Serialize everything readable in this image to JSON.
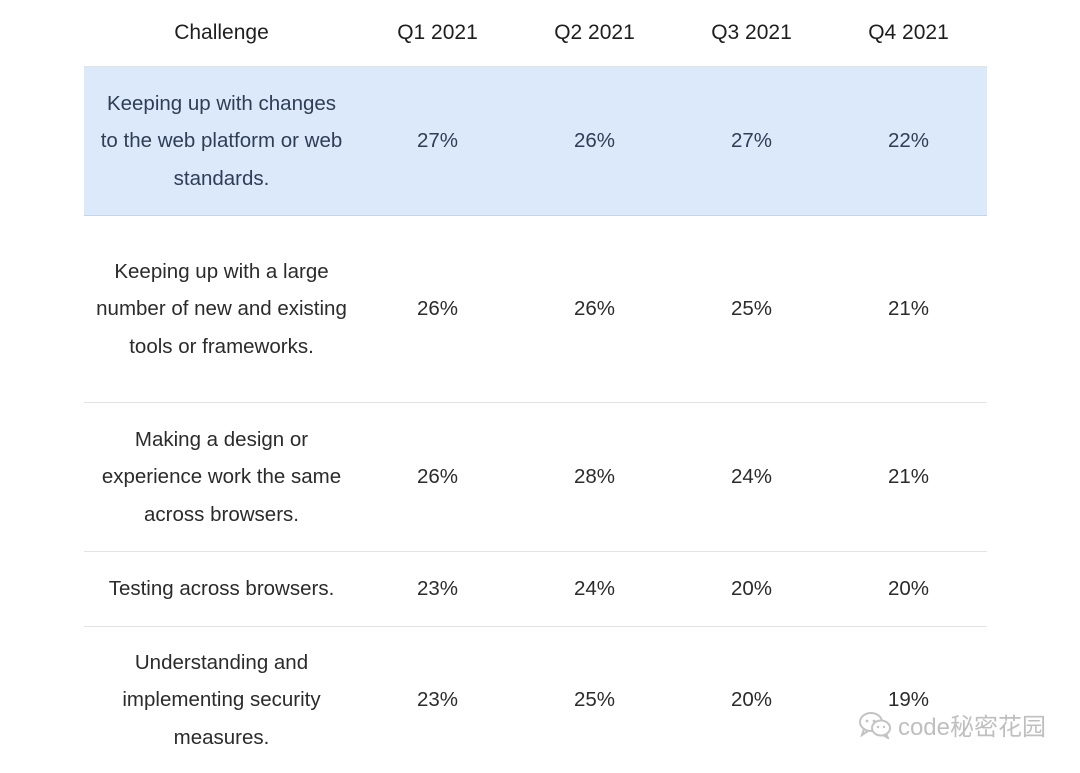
{
  "table": {
    "headers": [
      "Challenge",
      "Q1 2021",
      "Q2 2021",
      "Q3 2021",
      "Q4 2021"
    ],
    "rows": [
      {
        "challenge": "Keeping up with changes to the web platform or web standards.",
        "values": [
          "27%",
          "26%",
          "27%",
          "22%"
        ],
        "highlighted": true
      },
      {
        "challenge": "Keeping up with a large number of new and existing tools or frameworks.",
        "values": [
          "26%",
          "26%",
          "25%",
          "21%"
        ],
        "highlighted": false
      },
      {
        "challenge": "Making a design or experience work the same across browsers.",
        "values": [
          "26%",
          "28%",
          "24%",
          "21%"
        ],
        "highlighted": false
      },
      {
        "challenge": "Testing across browsers.",
        "values": [
          "23%",
          "24%",
          "20%",
          "20%"
        ],
        "highlighted": false
      },
      {
        "challenge": "Understanding and implementing security measures.",
        "values": [
          "23%",
          "25%",
          "20%",
          "19%"
        ],
        "highlighted": false
      }
    ]
  },
  "watermark": {
    "text": "code秘密花园",
    "icon": "wechat-icon"
  },
  "colors": {
    "highlight_row": "#dbe9fb",
    "divider": "#e3e3e3"
  }
}
